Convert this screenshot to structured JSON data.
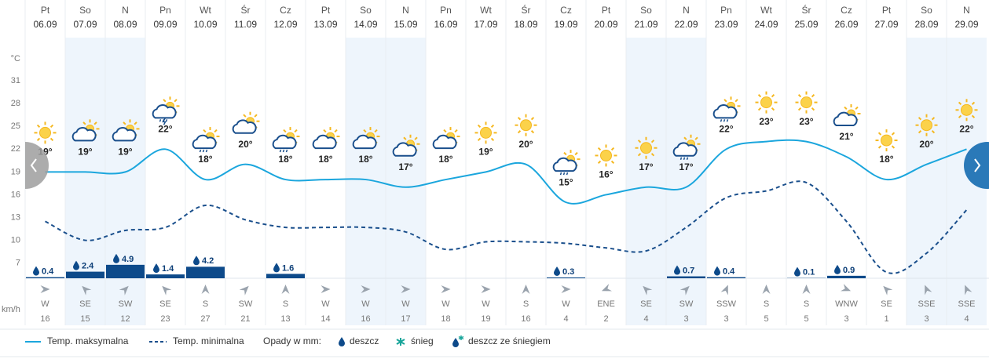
{
  "chart_data": {
    "type": "line",
    "y_unit": "°C",
    "weekdays": [
      "Pt",
      "So",
      "N",
      "Pn",
      "Wt",
      "Śr",
      "Cz",
      "Pt",
      "So",
      "N",
      "Pn",
      "Wt",
      "Śr",
      "Cz",
      "Pt",
      "So",
      "N",
      "Pn",
      "Wt",
      "Śr",
      "Cz",
      "Pt",
      "So",
      "N"
    ],
    "categories": [
      "06.09",
      "07.09",
      "08.09",
      "09.09",
      "10.09",
      "11.09",
      "12.09",
      "13.09",
      "14.09",
      "15.09",
      "16.09",
      "17.09",
      "18.09",
      "19.09",
      "20.09",
      "21.09",
      "22.09",
      "23.09",
      "24.09",
      "25.09",
      "26.09",
      "27.09",
      "28.09",
      "29.09"
    ],
    "ylim": [
      5,
      37
    ],
    "yticks": [
      7,
      10,
      13,
      16,
      19,
      22,
      25,
      28,
      31
    ],
    "grid": false,
    "series": [
      {
        "name": "Temp. maksymalna",
        "color": "#1ba6dd",
        "line_style": "solid",
        "values": [
          19,
          19,
          19,
          22,
          18,
          20,
          18,
          18,
          18,
          17,
          18,
          19,
          20,
          15,
          16,
          17,
          17,
          22,
          23,
          23,
          21,
          18,
          20,
          22
        ],
        "value_labels": [
          "19°",
          "19°",
          "19°",
          "22°",
          "18°",
          "20°",
          "18°",
          "18°",
          "18°",
          "17°",
          "18°",
          "19°",
          "20°",
          "15°",
          "16°",
          "17°",
          "17°",
          "22°",
          "23°",
          "23°",
          "21°",
          "18°",
          "20°",
          "22°"
        ]
      },
      {
        "name": "Temp. minimalna",
        "color": "#1a4f8c",
        "line_style": "dashed",
        "values": [
          12.5,
          10,
          11.3,
          11.7,
          14.6,
          12.7,
          11.7,
          11.7,
          11.7,
          11.1,
          8.8,
          9.8,
          9.8,
          9.6,
          9,
          8.6,
          11.7,
          15.6,
          16.5,
          17.6,
          12.5,
          5.8,
          8.3,
          14
        ]
      }
    ],
    "precipitation": {
      "label": "Opady w mm:",
      "color": "#0d4a8a",
      "values": [
        0.4,
        2.4,
        4.9,
        1.4,
        4.2,
        null,
        1.6,
        null,
        null,
        null,
        null,
        null,
        null,
        0.3,
        null,
        null,
        0.7,
        0.4,
        null,
        0.1,
        0.9,
        null,
        null,
        null
      ],
      "kinds": [
        "deszcz",
        "śnieg",
        "deszcz ze śniegiem"
      ]
    },
    "wind": {
      "unit": "km/h",
      "directions": [
        "W",
        "SE",
        "SW",
        "SE",
        "S",
        "SW",
        "S",
        "W",
        "W",
        "W",
        "W",
        "W",
        "S",
        "W",
        "ENE",
        "SE",
        "SW",
        "SSW",
        "S",
        "S",
        "WNW",
        "SE",
        "SSE",
        "SSE"
      ],
      "speeds": [
        16,
        15,
        12,
        23,
        27,
        21,
        13,
        14,
        16,
        17,
        18,
        19,
        16,
        4,
        2,
        4,
        3,
        3,
        5,
        5,
        3,
        1,
        3,
        4
      ]
    }
  }
}
